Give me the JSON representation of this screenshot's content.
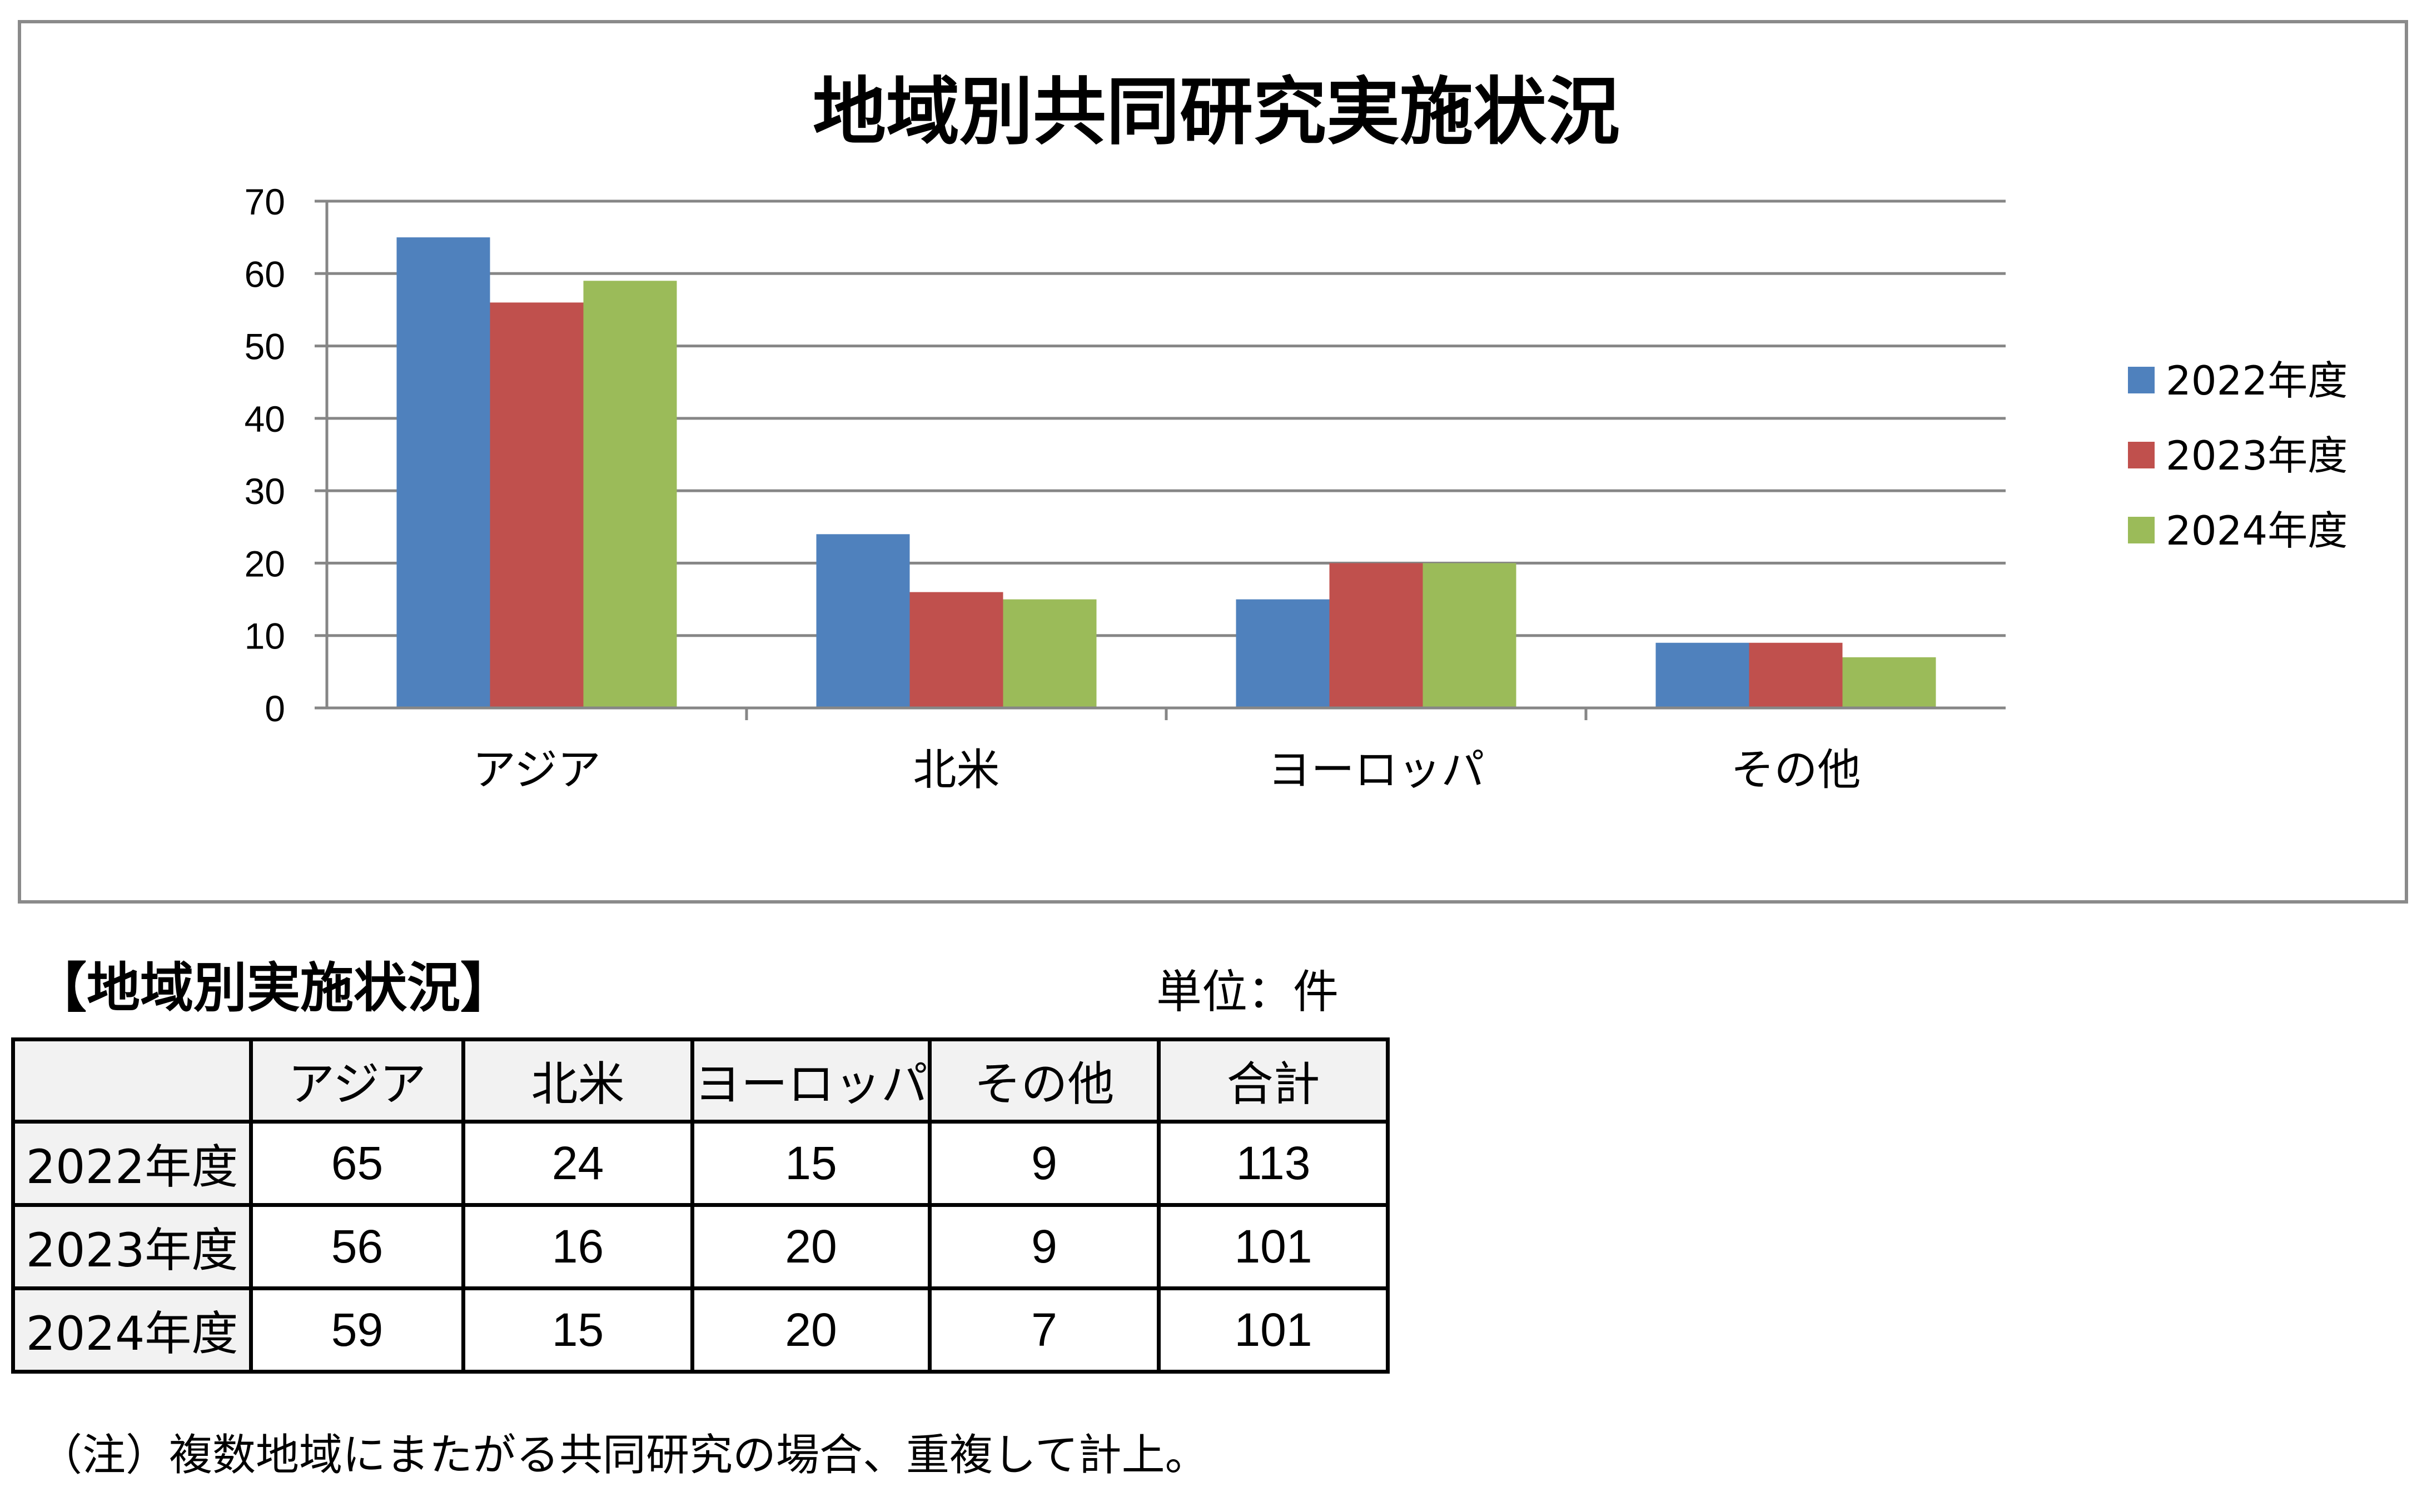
{
  "chart_data": {
    "type": "bar",
    "title": "地域別共同研究実施状況",
    "categories": [
      "アジア",
      "北米",
      "ヨーロッパ",
      "その他"
    ],
    "series": [
      {
        "name": "2022年度",
        "values": [
          65,
          24,
          15,
          9
        ],
        "color": "#4f81bd"
      },
      {
        "name": "2023年度",
        "values": [
          56,
          16,
          20,
          9
        ],
        "color": "#c0504d"
      },
      {
        "name": "2024年度",
        "values": [
          59,
          15,
          20,
          7
        ],
        "color": "#9bbb59"
      }
    ],
    "xlabel": "",
    "ylabel": "",
    "ylim": [
      0,
      70
    ],
    "yticks": [
      0,
      10,
      20,
      30,
      40,
      50,
      60,
      70
    ],
    "grid": true,
    "legend": "right"
  },
  "table": {
    "title": "【地域別実施状況】",
    "unit": "単位：件",
    "headers": [
      "",
      "アジア",
      "北米",
      "ヨーロッパ",
      "その他",
      "合計"
    ],
    "rows": [
      {
        "label": "2022年度",
        "values": [
          "65",
          "24",
          "15",
          "9",
          "113"
        ]
      },
      {
        "label": "2023年度",
        "values": [
          "56",
          "16",
          "20",
          "9",
          "101"
        ]
      },
      {
        "label": "2024年度",
        "values": [
          "59",
          "15",
          "20",
          "7",
          "101"
        ]
      }
    ]
  },
  "note": "（注）複数地域にまたがる共同研究の場合、重複して計上。"
}
